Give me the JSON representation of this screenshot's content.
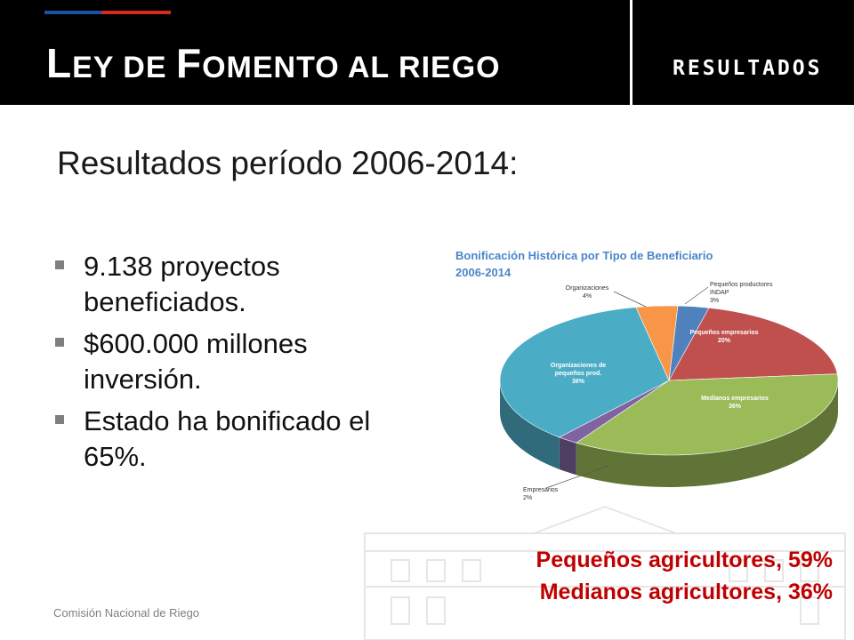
{
  "header": {
    "title_cap1": "L",
    "title_rest1": "EY DE ",
    "title_cap2": "F",
    "title_rest2": "OMENTO AL RIEGO",
    "section": "RESULTADOS",
    "colors": {
      "background": "#000000",
      "flag_blue": "#1f4fa3",
      "flag_red": "#d52b1e"
    }
  },
  "subtitle": "Resultados período 2006-2014:",
  "bullets": [
    "9.138 proyectos beneficiados.",
    "$600.000  millones inversión.",
    "Estado ha bonificado el 65%."
  ],
  "chart_data": {
    "type": "pie",
    "title": "Bonificación Histórica por Tipo de Beneficiario 2006-2014",
    "title_lines": [
      "Bonificación Histórica por Tipo de Beneficiario",
      "2006-2014"
    ],
    "slices": [
      {
        "label": "Pequeños productores INDAP",
        "label_lines": [
          "Pequeños productores",
          "INDAP"
        ],
        "value": 3,
        "value_label": "3%",
        "color": "#4f81bd"
      },
      {
        "label": "Pequeños empresarios",
        "label_lines": [
          "Pequeños empresarios"
        ],
        "value": 20,
        "value_label": "20%",
        "color": "#c0504d"
      },
      {
        "label": "Medianos empresarios",
        "label_lines": [
          "Medianos empresarios"
        ],
        "value": 36,
        "value_label": "36%",
        "color": "#9bbb59"
      },
      {
        "label": "Empresarios",
        "label_lines": [
          "Empresarios"
        ],
        "value": 2,
        "value_label": "2%",
        "color": "#8064a2"
      },
      {
        "label": "Organizaciones de pequeños prod.",
        "label_lines": [
          "Organizaciones de",
          "pequeños prod."
        ],
        "value": 36,
        "value_label": "36%",
        "color": "#4bacc6"
      },
      {
        "label": "Organizaciones",
        "label_lines": [
          "Organizaciones"
        ],
        "value": 4,
        "value_label": "4%",
        "color": "#f79646"
      }
    ]
  },
  "highlight": {
    "line1": "Pequeños agricultores,  59%",
    "line2": "Medianos agricultores,  36%",
    "color": "#c00000"
  },
  "footer": "Comisión Nacional de Riego"
}
